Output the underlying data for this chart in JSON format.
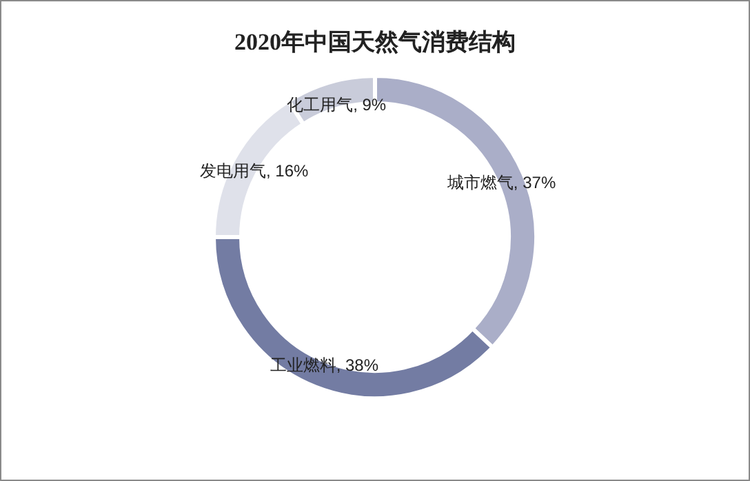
{
  "chart_data": {
    "type": "donut",
    "title": "2020年中国天然气消费结构",
    "categories": [
      "城市燃气",
      "工业燃料",
      "发电用气",
      "化工用气"
    ],
    "values": [
      37,
      38,
      16,
      9
    ],
    "value_labels": [
      "37%",
      "38%",
      "16%",
      "9%"
    ],
    "colors": [
      "#aaaec8",
      "#737ca3",
      "#dfe1ea",
      "#c9ccda"
    ],
    "legend": false
  }
}
